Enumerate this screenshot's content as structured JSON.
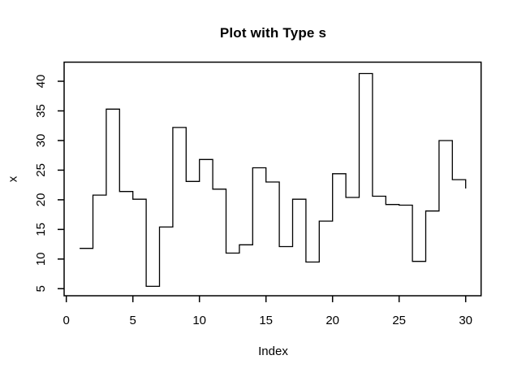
{
  "chart_data": {
    "type": "line",
    "step_type": "s",
    "title": "Plot with Type s",
    "xlabel": "Index",
    "ylabel": "x",
    "x": [
      1,
      2,
      3,
      4,
      5,
      6,
      7,
      8,
      9,
      10,
      11,
      12,
      13,
      14,
      15,
      16,
      17,
      18,
      19,
      20,
      21,
      22,
      23,
      24,
      25,
      26,
      27,
      28,
      29,
      30
    ],
    "values": [
      11.8,
      20.8,
      35.3,
      21.4,
      20.1,
      5.4,
      15.4,
      32.2,
      23.1,
      26.8,
      21.8,
      11.0,
      12.4,
      25.4,
      23.0,
      12.1,
      20.1,
      9.5,
      16.4,
      24.4,
      20.4,
      41.3,
      20.6,
      19.2,
      19.1,
      9.6,
      18.1,
      30.0,
      23.4,
      21.9
    ],
    "x_ticks": [
      0,
      5,
      10,
      15,
      20,
      25,
      30
    ],
    "y_ticks": [
      5,
      10,
      15,
      20,
      25,
      30,
      35,
      40
    ],
    "xlim": [
      -0.2,
      31.2
    ],
    "ylim": [
      3.8,
      43.2
    ],
    "grid": false,
    "line_color": "#000000",
    "background_color": "#ffffff"
  }
}
